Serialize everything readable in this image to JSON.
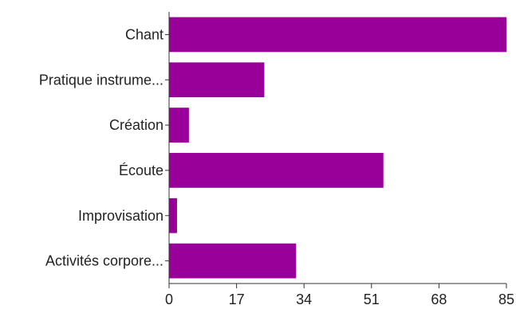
{
  "chart_data": {
    "type": "bar",
    "orientation": "horizontal",
    "categories": [
      "Chant",
      "Pratique instrume...",
      "Création",
      "Écoute",
      "Improvisation",
      "Activités corpore..."
    ],
    "values": [
      85,
      24,
      5,
      54,
      2,
      32
    ],
    "xticks": [
      "0",
      "17",
      "34",
      "51",
      "68",
      "85"
    ],
    "xlim": [
      0,
      85
    ],
    "bar_color": "#990099",
    "grid": false,
    "legend": "none"
  }
}
